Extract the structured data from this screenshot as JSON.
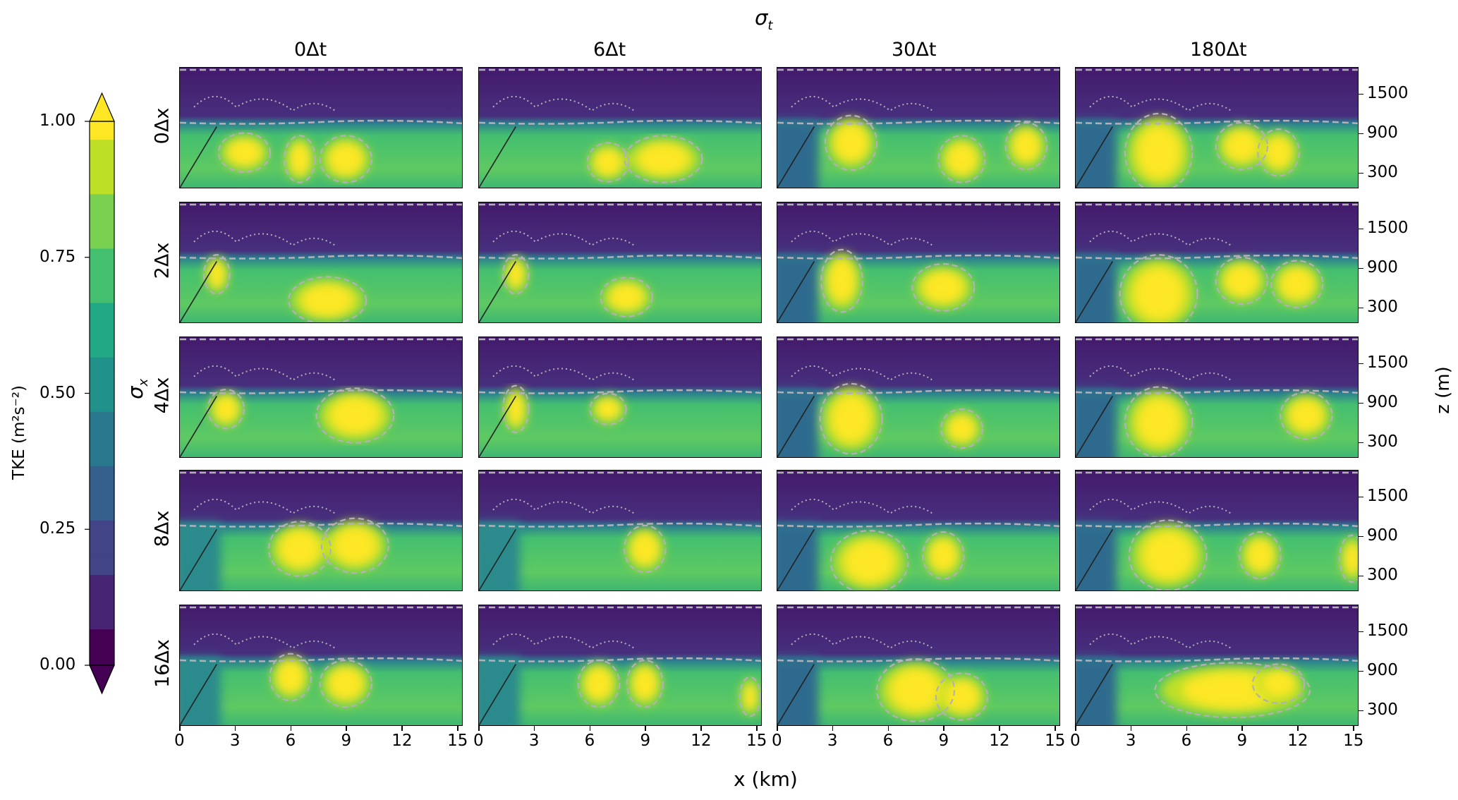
{
  "chart_data": {
    "type": "heatmap",
    "title": "σt",
    "title_sub": "t",
    "row_axis_label": "σx",
    "xlabel": "x (km)",
    "ylabel": "z (m)",
    "columns": [
      "0Δt",
      "6Δt",
      "30Δt",
      "180Δt"
    ],
    "rows": [
      "0Δx",
      "2Δx",
      "4Δx",
      "8Δx",
      "16Δx"
    ],
    "xlim": [
      0,
      15.3
    ],
    "ylim": [
      60,
      1906
    ],
    "xticks": [
      "0",
      "3",
      "6",
      "9",
      "12",
      "15"
    ],
    "xtick_values": [
      0,
      3,
      6,
      9,
      12,
      15
    ],
    "yticks": [
      "300",
      "900",
      "1500"
    ],
    "ytick_values": [
      300,
      900,
      1500
    ],
    "boundary_layer_top_m": 1050,
    "colorbar": {
      "label": "TKE (m²s⁻²)",
      "label_main": "TKE (",
      "label_unit": "m",
      "label_exp1": "2",
      "label_s": "s",
      "label_exp2": "−2",
      "label_close": ")",
      "ticks": [
        "0.00",
        "0.25",
        "0.50",
        "0.75",
        "1.00"
      ],
      "tick_values": [
        0,
        0.25,
        0.5,
        0.75,
        1.0
      ],
      "range": [
        0,
        1
      ],
      "colormap": "viridis",
      "extend": "both"
    },
    "panels": [
      [
        {
          "left_low": false,
          "hot": [
            [
              6.5,
              500,
              0.6,
              300
            ],
            [
              9,
              500,
              1,
              300
            ],
            [
              3.5,
              600,
              1,
              250
            ]
          ]
        },
        {
          "left_low": false,
          "hot": [
            [
              10,
              500,
              1.5,
              300
            ],
            [
              7,
              450,
              0.8,
              250
            ]
          ]
        },
        {
          "left_low": true,
          "hot": [
            [
              4,
              750,
              1,
              350
            ],
            [
              10,
              500,
              0.9,
              300
            ],
            [
              13.5,
              700,
              0.8,
              300
            ]
          ]
        },
        {
          "left_low": true,
          "hot": [
            [
              4.5,
              600,
              1.3,
              500
            ],
            [
              9,
              700,
              1,
              300
            ],
            [
              11,
              600,
              0.8,
              300
            ]
          ]
        }
      ],
      [
        {
          "left_low": false,
          "hot": [
            [
              2,
              800,
              0.5,
              250
            ],
            [
              8,
              400,
              1.5,
              300
            ]
          ]
        },
        {
          "left_low": false,
          "hot": [
            [
              2,
              800,
              0.5,
              250
            ],
            [
              8,
              450,
              1,
              250
            ]
          ]
        },
        {
          "left_low": true,
          "hot": [
            [
              3.5,
              700,
              0.8,
              400
            ],
            [
              9,
              600,
              1.2,
              300
            ]
          ]
        },
        {
          "left_low": true,
          "hot": [
            [
              4.5,
              500,
              1.5,
              500
            ],
            [
              9,
              700,
              1,
              300
            ],
            [
              12,
              650,
              1,
              300
            ]
          ]
        }
      ],
      [
        {
          "left_low": false,
          "hot": [
            [
              2.5,
              800,
              0.7,
              250
            ],
            [
              9.5,
              700,
              1.5,
              350
            ]
          ]
        },
        {
          "left_low": false,
          "hot": [
            [
              2,
              800,
              0.5,
              300
            ],
            [
              7,
              800,
              0.7,
              200
            ]
          ]
        },
        {
          "left_low": true,
          "hot": [
            [
              4,
              650,
              1.2,
              450
            ],
            [
              10,
              500,
              0.8,
              250
            ]
          ]
        },
        {
          "left_low": true,
          "hot": [
            [
              4.5,
              600,
              1.3,
              450
            ],
            [
              12.5,
              700,
              1,
              300
            ]
          ]
        }
      ],
      [
        {
          "left_low": true,
          "hot": [
            [
              6.5,
              700,
              1.2,
              350
            ],
            [
              9.5,
              750,
              1.3,
              350
            ]
          ]
        },
        {
          "left_low": true,
          "hot": [
            [
              9,
              700,
              0.8,
              300
            ]
          ]
        },
        {
          "left_low": true,
          "hot": [
            [
              5,
              500,
              1.5,
              400
            ],
            [
              9,
              600,
              0.8,
              300
            ]
          ]
        },
        {
          "left_low": true,
          "hot": [
            [
              5,
              600,
              1.5,
              450
            ],
            [
              10,
              600,
              0.8,
              300
            ],
            [
              15,
              550,
              0.5,
              300
            ]
          ]
        }
      ],
      [
        {
          "left_low": true,
          "hot": [
            [
              6,
              800,
              0.8,
              300
            ],
            [
              9,
              700,
              1,
              300
            ]
          ]
        },
        {
          "left_low": true,
          "hot": [
            [
              6.5,
              700,
              0.8,
              300
            ],
            [
              9,
              700,
              0.7,
              300
            ],
            [
              14.7,
              500,
              0.4,
              250
            ]
          ]
        },
        {
          "left_low": true,
          "hot": [
            [
              7.5,
              600,
              1.5,
              400
            ],
            [
              10,
              500,
              1,
              300
            ]
          ]
        },
        {
          "left_low": true,
          "hot": [
            [
              8.5,
              600,
              3,
              350
            ],
            [
              11,
              700,
              1,
              250
            ]
          ]
        }
      ]
    ],
    "colors": {
      "low": "#46307d",
      "mid": "#4fc46a",
      "high": "#fde725",
      "contour": "#b4b0b8",
      "transect": "#222222"
    }
  }
}
